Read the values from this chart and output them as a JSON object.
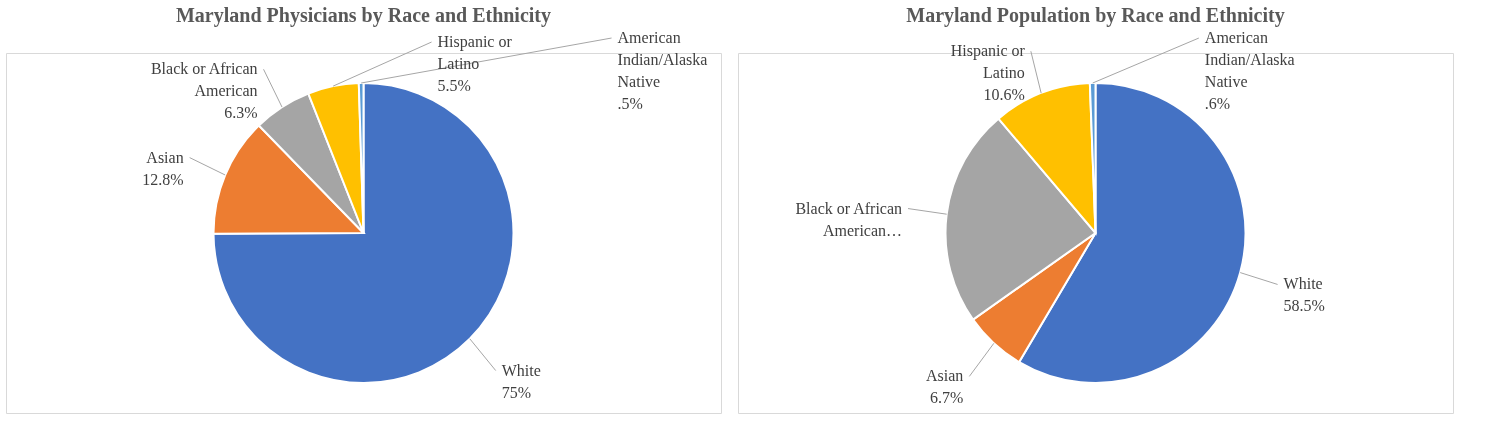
{
  "chart_data": [
    {
      "type": "pie",
      "title": "Maryland Physicians by Race and Ethnicity",
      "categories": [
        "White",
        "Asian",
        "Black or African American",
        "Hispanic or Latino",
        "American Indian/Alaska Native"
      ],
      "values": [
        75,
        12.8,
        6.3,
        5.5,
        0.5
      ],
      "colors": [
        "#4472c4",
        "#ed7d31",
        "#a5a5a5",
        "#ffc000",
        "#5b9bd5"
      ],
      "value_labels": [
        "75%",
        "12.8%",
        "6.3%",
        "5.5%",
        ".5%"
      ]
    },
    {
      "type": "pie",
      "title": "Maryland Population by Race and Ethnicity",
      "categories": [
        "White",
        "Asian",
        "Black or African American…",
        "Hispanic or Latino",
        "American Indian/Alaska Native"
      ],
      "values": [
        58.5,
        6.7,
        23.6,
        10.6,
        0.6
      ],
      "colors": [
        "#4472c4",
        "#ed7d31",
        "#a5a5a5",
        "#ffc000",
        "#5b9bd5"
      ],
      "value_labels": [
        "58.5%",
        "6.7%",
        null,
        "10.6%",
        ".6%"
      ]
    }
  ]
}
